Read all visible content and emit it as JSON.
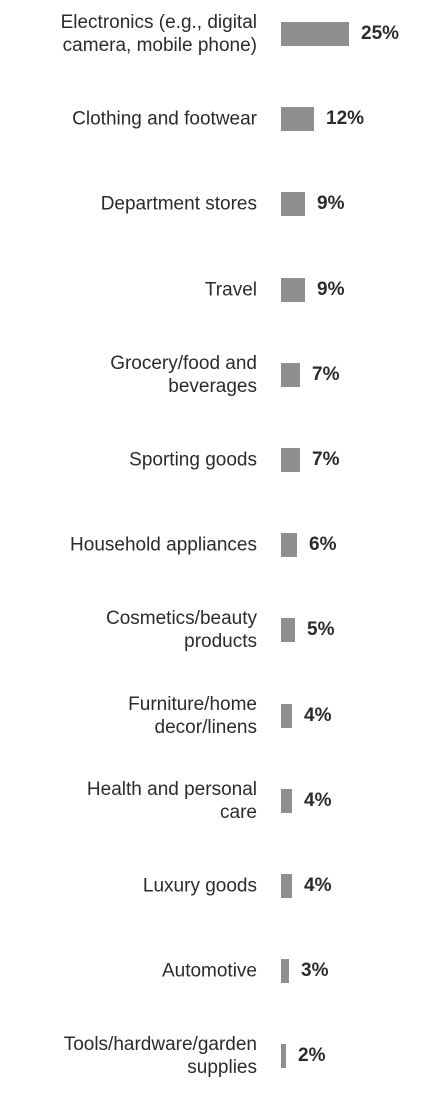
{
  "chart_data": {
    "type": "bar",
    "orientation": "horizontal",
    "categories": [
      "Electronics (e.g., digital\ncamera, mobile phone)",
      "Clothing and footwear",
      "Department stores",
      "Travel",
      "Grocery/food and\nbeverages",
      "Sporting goods",
      "Household appliances",
      "Cosmetics/beauty\nproducts",
      "Furniture/home\ndecor/linens",
      "Health and personal\ncare",
      "Luxury goods",
      "Automotive",
      "Tools/hardware/garden\nsupplies"
    ],
    "values": [
      25,
      12,
      9,
      9,
      7,
      7,
      6,
      5,
      4,
      4,
      4,
      3,
      2
    ],
    "value_labels": [
      "25%",
      "12%",
      "9%",
      "9%",
      "7%",
      "7%",
      "6%",
      "5%",
      "4%",
      "4%",
      "4%",
      "3%",
      "2%"
    ],
    "unit": "%",
    "bar_color": "#8f8f91",
    "title": "",
    "xlabel": "",
    "ylabel": "",
    "grid": false,
    "legend": "none"
  }
}
